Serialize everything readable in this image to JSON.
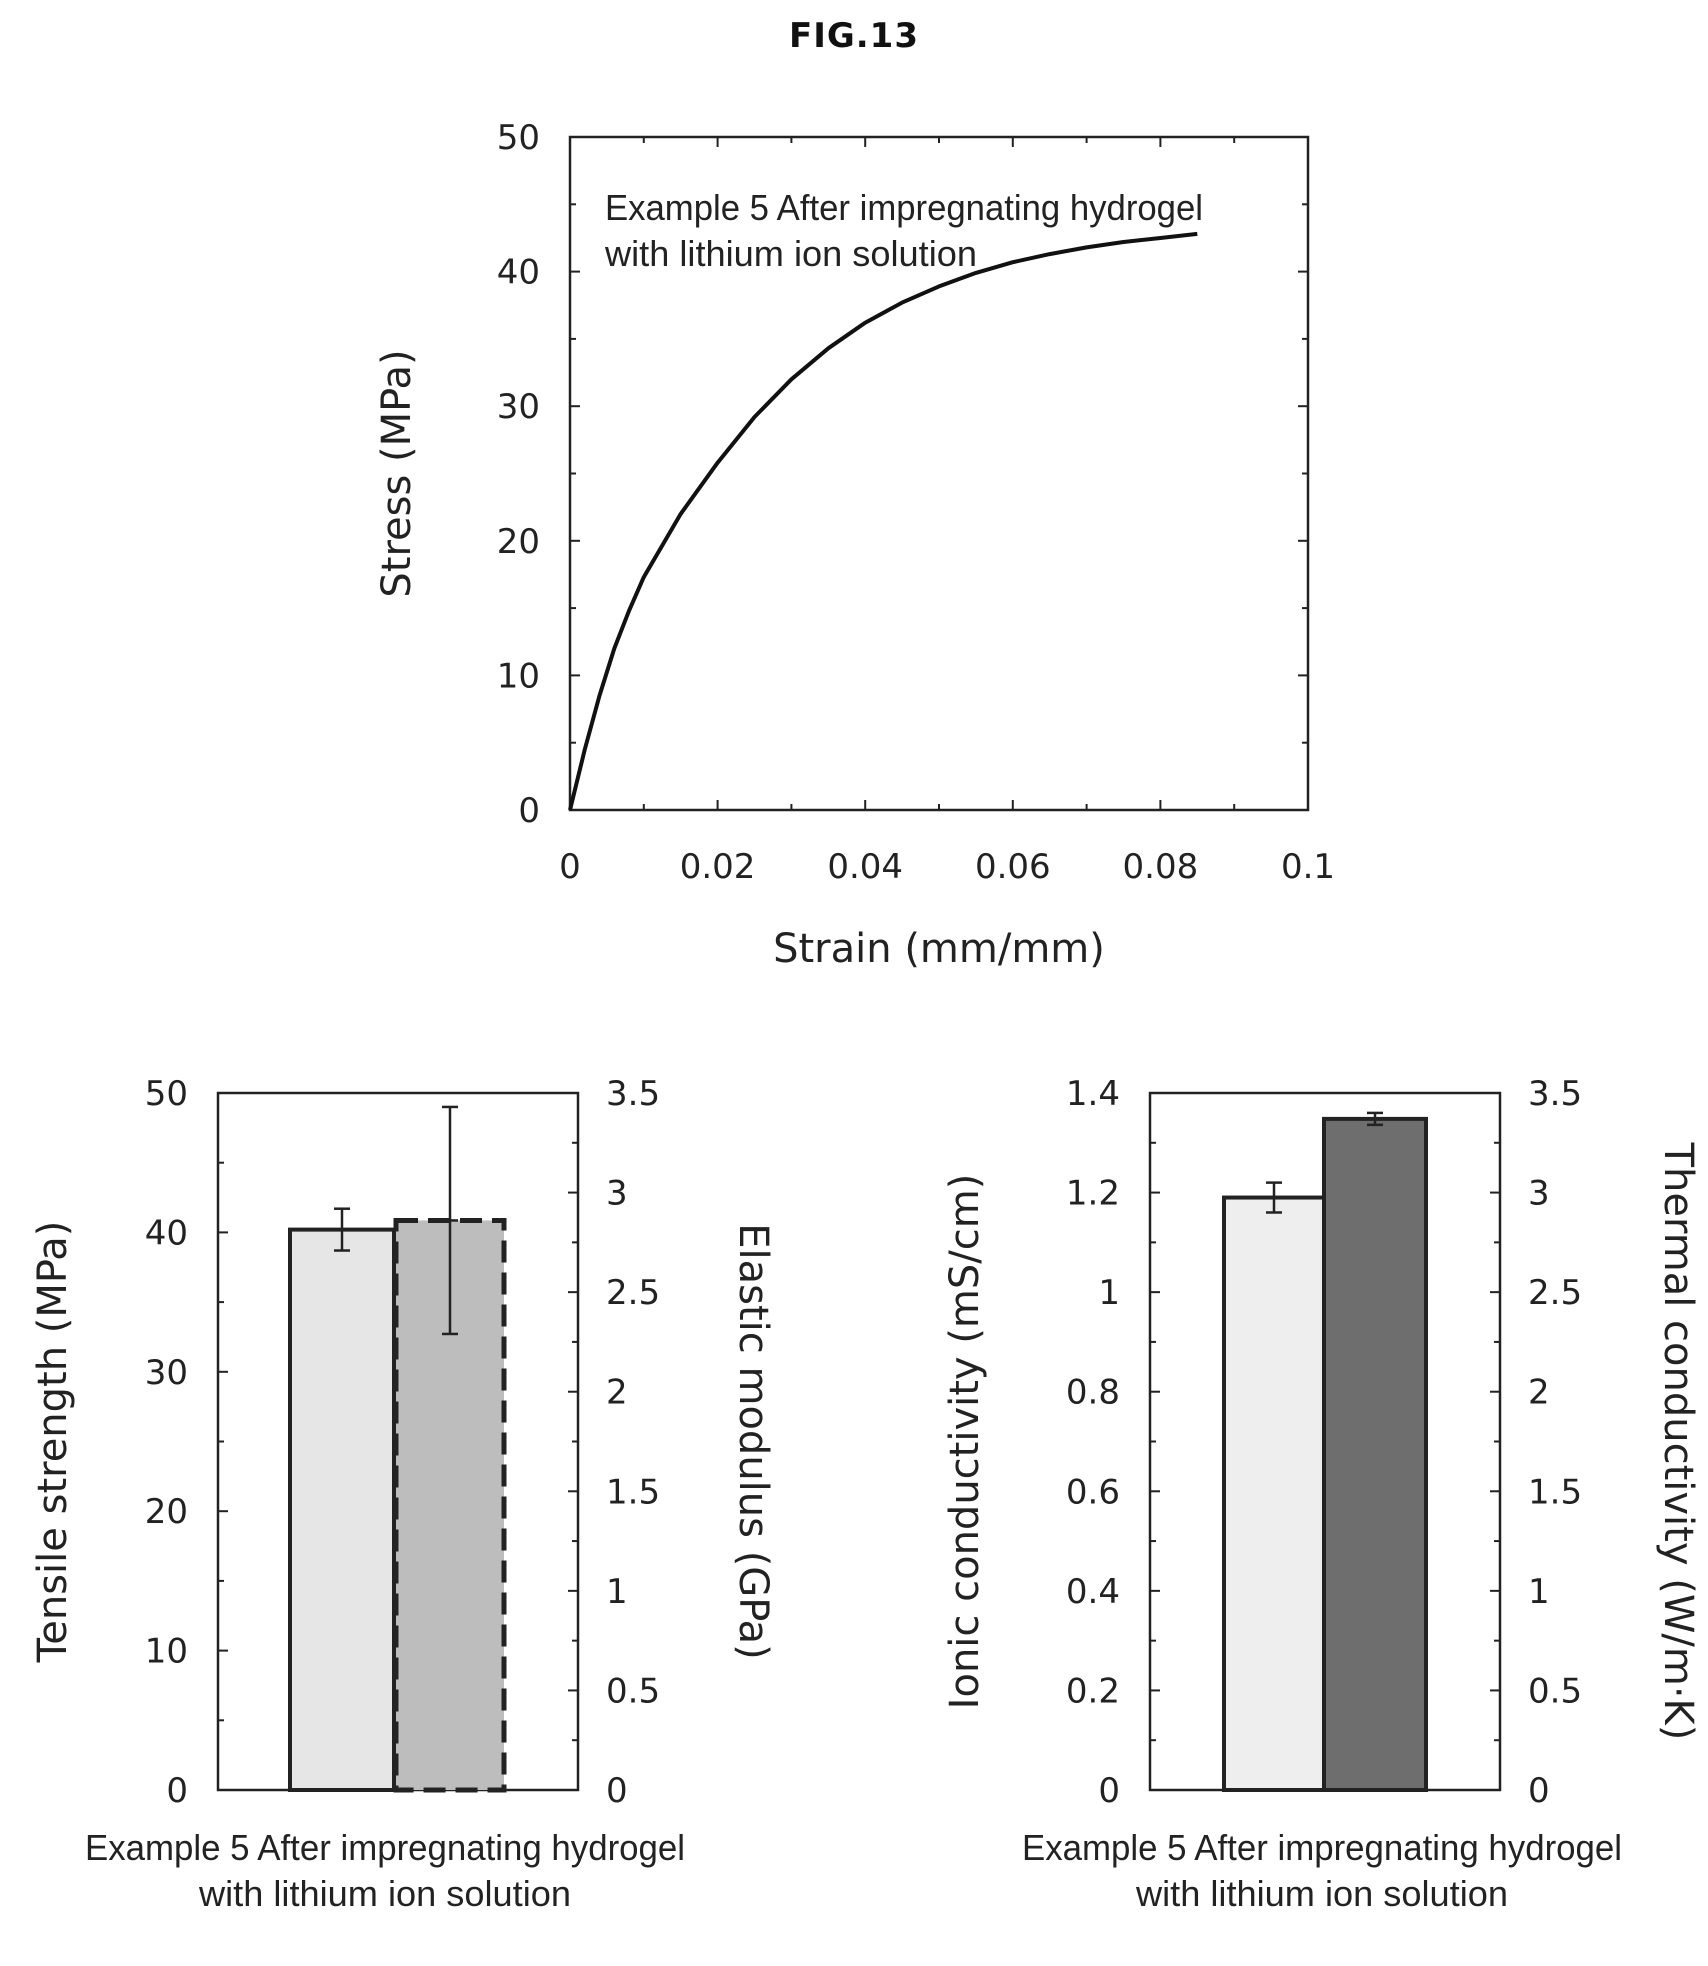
{
  "figure_title": "FIG.13",
  "chart_data": [
    {
      "type": "line",
      "title": "",
      "xlabel": "Strain (mm/mm)",
      "ylabel": "Stress (MPa)",
      "xlim": [
        0,
        0.1
      ],
      "ylim": [
        0,
        50
      ],
      "xticks": [
        "0",
        "0.02",
        "0.04",
        "0.06",
        "0.08",
        "0.1"
      ],
      "yticks": [
        "0",
        "10",
        "20",
        "30",
        "40",
        "50"
      ],
      "grid": false,
      "annotation": [
        "Example 5 After impregnating hydrogel",
        "with lithium ion solution"
      ],
      "series": [
        {
          "x": [
            0,
            0.002,
            0.004,
            0.006,
            0.008,
            0.01,
            0.015,
            0.02,
            0.025,
            0.03,
            0.035,
            0.04,
            0.045,
            0.05,
            0.055,
            0.06,
            0.065,
            0.07,
            0.075,
            0.08,
            0.085
          ],
          "y": [
            0,
            4.5,
            8.5,
            12,
            14.8,
            17.3,
            22,
            25.8,
            29.2,
            32,
            34.3,
            36.2,
            37.7,
            38.9,
            39.9,
            40.7,
            41.3,
            41.8,
            42.2,
            42.5,
            42.8
          ]
        }
      ]
    },
    {
      "type": "bar",
      "title": "",
      "xlabel": "",
      "caption": [
        "Example 5 After impregnating hydrogel",
        "with lithium ion solution"
      ],
      "ylabel": "Tensile strength (MPa)",
      "ylabel_right": "Elastic modulus (GPa)",
      "ylim": [
        0,
        50
      ],
      "ylim_right": [
        0,
        3.5
      ],
      "yticks": [
        "0",
        "10",
        "20",
        "30",
        "40",
        "50"
      ],
      "yticks_right": [
        "0",
        "0.5",
        "1",
        "1.5",
        "2",
        "2.5",
        "3",
        "3.5"
      ],
      "grid": false,
      "series": [
        {
          "axis": "left",
          "value": 40.2,
          "error": 1.5,
          "fill": "#e6e6e6",
          "stroke": "#222222",
          "dashed": false
        },
        {
          "axis": "right",
          "value": 2.86,
          "error": 0.57,
          "fill": "#bdbdbd",
          "stroke": "#222222",
          "dashed": true
        }
      ]
    },
    {
      "type": "bar",
      "title": "",
      "xlabel": "",
      "caption": [
        "Example 5 After impregnating hydrogel",
        "with lithium ion solution"
      ],
      "ylabel": "Ionic conductivity (mS/cm)",
      "ylabel_right": "Thermal conductivity (W/m·K)",
      "ylim": [
        0,
        1.4
      ],
      "ylim_right": [
        0,
        3.5
      ],
      "yticks": [
        "0",
        "0.2",
        "0.4",
        "0.6",
        "0.8",
        "1",
        "1.2",
        "1.4"
      ],
      "yticks_right": [
        "0",
        "0.5",
        "1",
        "1.5",
        "2",
        "2.5",
        "3",
        "3.5"
      ],
      "grid": false,
      "series": [
        {
          "axis": "left",
          "value": 1.19,
          "error": 0.03,
          "fill": "#eeeeee",
          "stroke": "#222222",
          "dashed": false
        },
        {
          "axis": "right",
          "value": 3.37,
          "error": 0.03,
          "fill": "#6e6e6e",
          "stroke": "#222222",
          "dashed": false
        }
      ]
    }
  ]
}
